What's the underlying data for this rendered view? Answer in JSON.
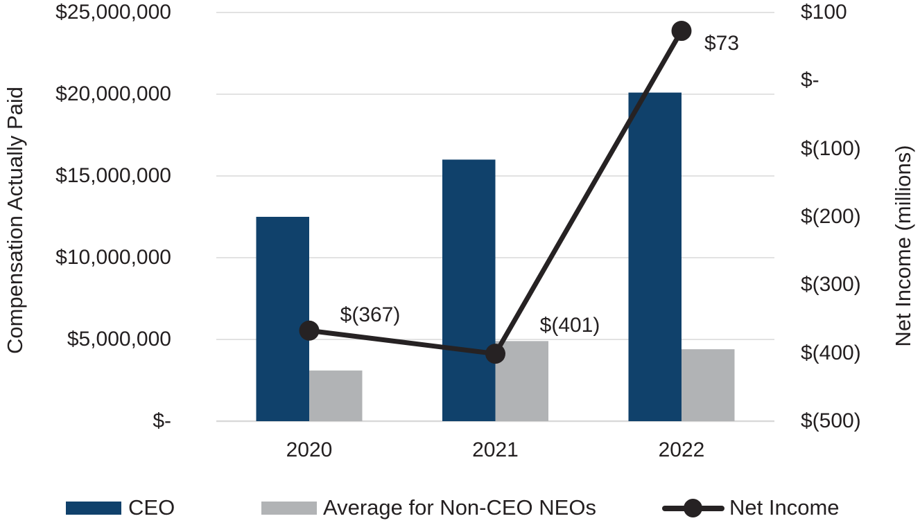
{
  "chart_data": {
    "type": "bar",
    "subtype": "bar-line-combo",
    "categories": [
      "2020",
      "2021",
      "2022"
    ],
    "series": [
      {
        "name": "CEO",
        "type": "bar",
        "axis": "left",
        "color": "#10416b",
        "values": [
          12500000,
          16000000,
          20100000
        ]
      },
      {
        "name": "Average for Non-CEO NEOs",
        "type": "bar",
        "axis": "left",
        "color": "#b1b3b5",
        "values": [
          3100000,
          4900000,
          4400000
        ]
      },
      {
        "name": "Net Income",
        "type": "line",
        "axis": "right",
        "color": "#262223",
        "values": [
          -367,
          -401,
          73
        ],
        "point_labels": [
          "$(367)",
          "$(401)",
          "$73"
        ]
      }
    ],
    "left_axis": {
      "title": "Compensation Actually Paid",
      "min": 0,
      "max": 25000000,
      "ticks": [
        "$25,000,000",
        "$20,000,000",
        "$15,000,000",
        "$10,000,000",
        "$5,000,000",
        "$-"
      ]
    },
    "right_axis": {
      "title": "Net Income (millions)",
      "min": -500,
      "max": 100,
      "ticks": [
        "$100",
        "$-",
        "$(100)",
        "$(200)",
        "$(300)",
        "$(400)",
        "$(500)"
      ]
    },
    "grid": "on",
    "grid_color": "#d9d9d9",
    "text_color": "#231f20",
    "legend_position": "bottom"
  }
}
